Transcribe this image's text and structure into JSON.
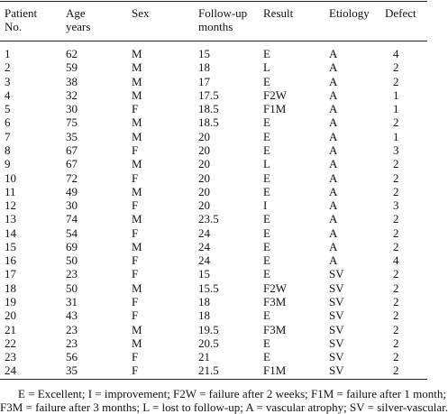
{
  "table": {
    "headers": [
      "Patient\nNo.",
      "Age\nyears",
      "Sex",
      "Follow-up\nmonths",
      "Result",
      "Etiology",
      "Defect"
    ],
    "rows": [
      [
        "1",
        "62",
        "M",
        "15",
        "E",
        "A",
        "4"
      ],
      [
        "2",
        "59",
        "M",
        "18",
        "L",
        "A",
        "2"
      ],
      [
        "3",
        "38",
        "M",
        "17",
        "E",
        "A",
        "2"
      ],
      [
        "4",
        "32",
        "M",
        "17.5",
        "F2W",
        "A",
        "1"
      ],
      [
        "5",
        "30",
        "F",
        "18.5",
        "F1M",
        "A",
        "1"
      ],
      [
        "6",
        "75",
        "M",
        "18.5",
        "E",
        "A",
        "2"
      ],
      [
        "7",
        "35",
        "M",
        "20",
        "E",
        "A",
        "1"
      ],
      [
        "8",
        "67",
        "F",
        "20",
        "E",
        "A",
        "3"
      ],
      [
        "9",
        "67",
        "M",
        "20",
        "L",
        "A",
        "2"
      ],
      [
        "10",
        "72",
        "F",
        "20",
        "E",
        "A",
        "2"
      ],
      [
        "11",
        "49",
        "M",
        "20",
        "E",
        "A",
        "2"
      ],
      [
        "12",
        "30",
        "F",
        "20",
        "I",
        "A",
        "3"
      ],
      [
        "13",
        "74",
        "M",
        "23.5",
        "E",
        "A",
        "2"
      ],
      [
        "14",
        "54",
        "F",
        "24",
        "E",
        "A",
        "2"
      ],
      [
        "15",
        "69",
        "M",
        "24",
        "E",
        "A",
        "2"
      ],
      [
        "16",
        "50",
        "F",
        "24",
        "E",
        "A",
        "4"
      ],
      [
        "17",
        "23",
        "F",
        "15",
        "E",
        "SV",
        "2"
      ],
      [
        "18",
        "50",
        "M",
        "15.5",
        "F2W",
        "SV",
        "2"
      ],
      [
        "19",
        "31",
        "F",
        "18",
        "F3M",
        "SV",
        "2"
      ],
      [
        "20",
        "43",
        "F",
        "18",
        "E",
        "SV",
        "2"
      ],
      [
        "21",
        "23",
        "M",
        "19.5",
        "F3M",
        "SV",
        "2"
      ],
      [
        "22",
        "23",
        "M",
        "20.5",
        "E",
        "SV",
        "2"
      ],
      [
        "23",
        "56",
        "F",
        "21",
        "E",
        "SV",
        "2"
      ],
      [
        "24",
        "35",
        "F",
        "21.5",
        "F1M",
        "SV",
        "2"
      ]
    ]
  },
  "footnote": {
    "line1": "E = Excellent; I = improvement; F2W = failure after 2 weeks; F1M = failure after 1 month;",
    "line2": "F3M = failure after 3 months; L = lost to follow-up; A = vascular atrophy; SV = silver-vascular."
  }
}
